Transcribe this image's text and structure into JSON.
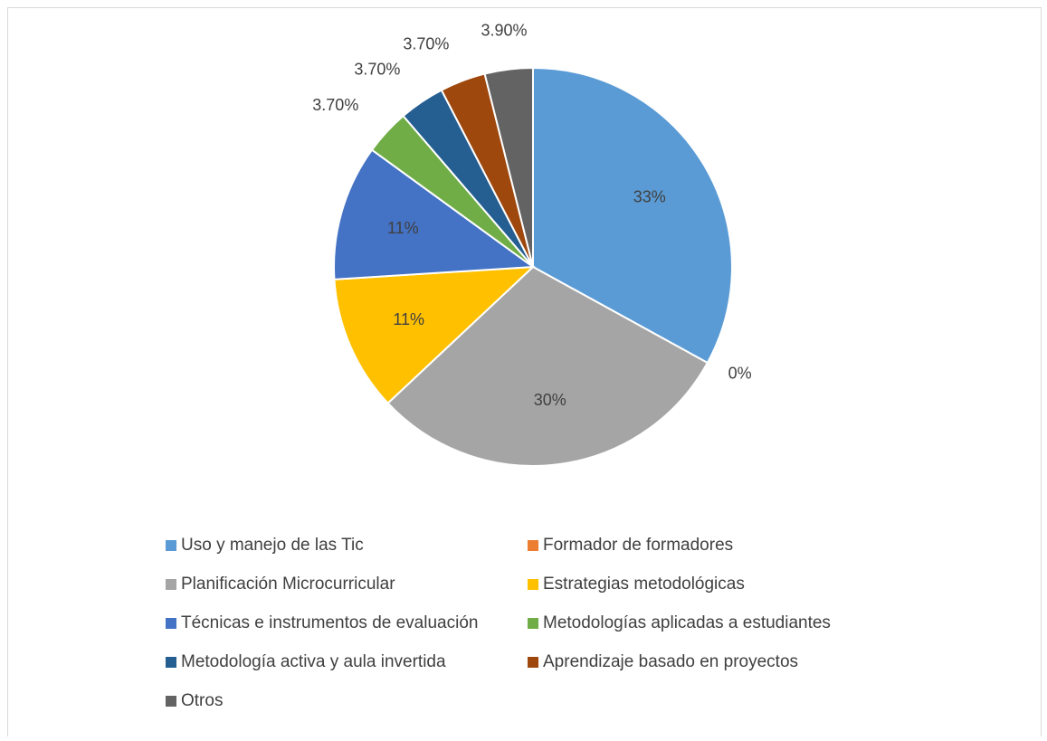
{
  "chart_data": {
    "type": "pie",
    "categories": [
      "Uso y manejo de las Tic",
      "Formador de formadores",
      "Planificación Microcurricular",
      "Estrategias metodológicas",
      "Técnicas e instrumentos de evaluación",
      "Metodologías aplicadas a estudiantes",
      "Metodología activa y aula invertida",
      "Aprendizaje basado en proyectos",
      "Otros"
    ],
    "values": [
      33,
      0,
      30,
      11,
      11,
      3.7,
      3.7,
      3.7,
      3.9
    ],
    "value_labels": [
      "33%",
      "0%",
      "30%",
      "11%",
      "11%",
      "3.70%",
      "3.70%",
      "3.70%",
      "3.90%"
    ],
    "colors": [
      "#5b9bd5",
      "#ed7d31",
      "#a5a5a5",
      "#ffc000",
      "#4472c4",
      "#70ad47",
      "#255e91",
      "#9e480e",
      "#636363"
    ],
    "legend": "bottom"
  }
}
